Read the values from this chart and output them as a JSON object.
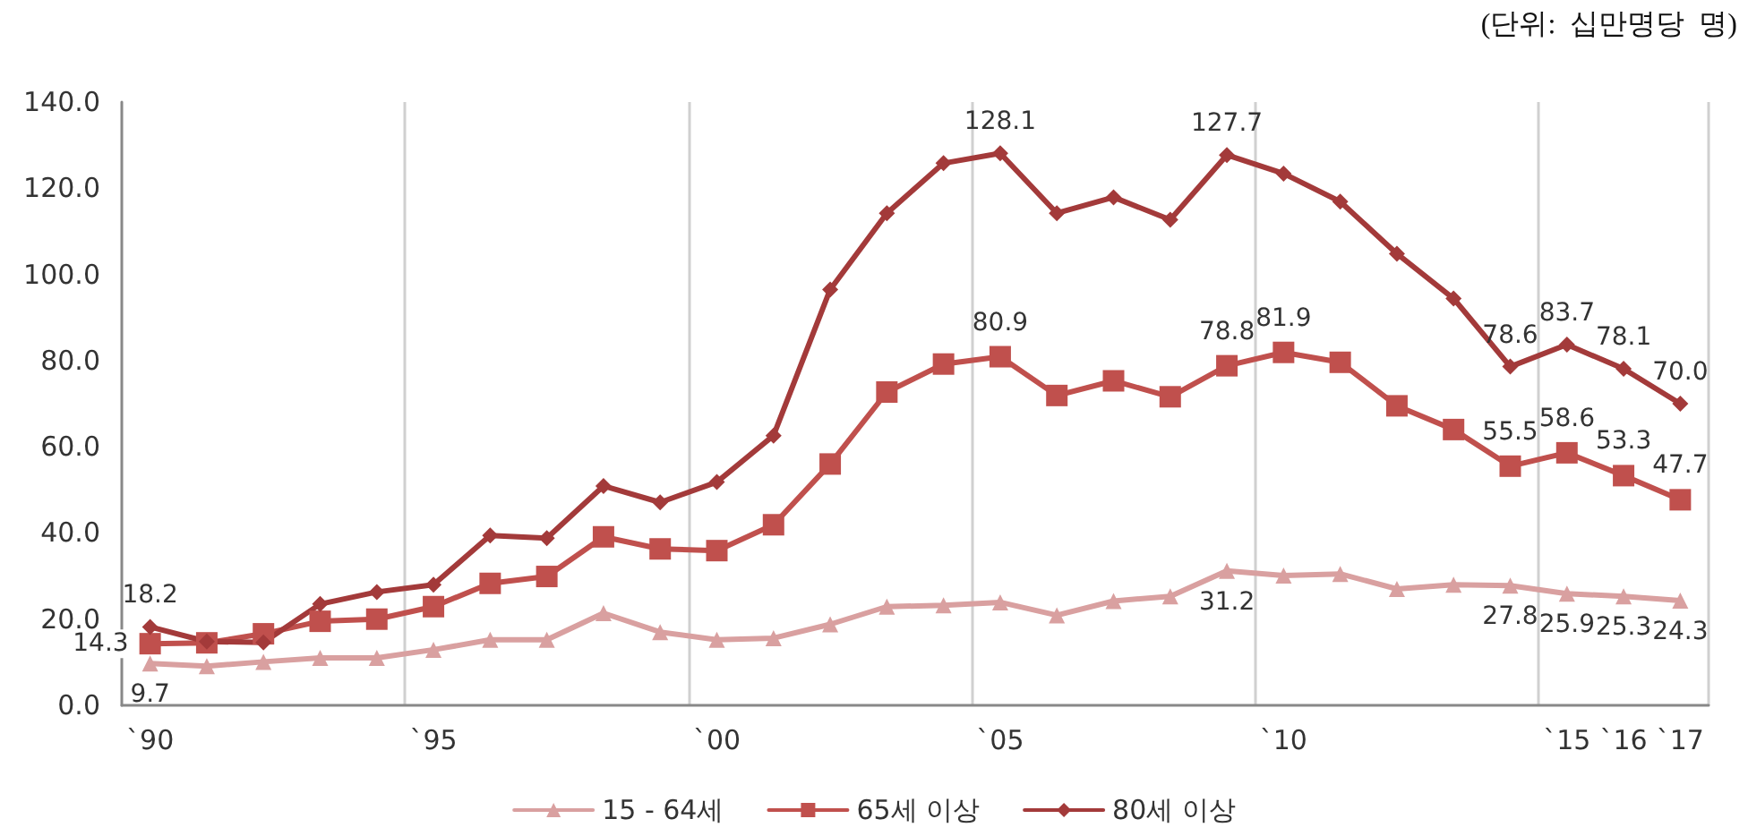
{
  "chart_data": {
    "type": "line",
    "annotations": [
      "(단위:  십만명당  명)"
    ],
    "categories": [
      "`90",
      null,
      null,
      null,
      null,
      "`95",
      null,
      null,
      null,
      null,
      "`00",
      null,
      null,
      null,
      null,
      "`05",
      null,
      null,
      null,
      null,
      "`10",
      null,
      null,
      null,
      null,
      "`15",
      "`16",
      "`17"
    ],
    "ylim": [
      0,
      140
    ],
    "yticks": [
      {
        "value": 0,
        "label": "0.0"
      },
      {
        "value": 20,
        "label": "20.0"
      },
      {
        "value": 40,
        "label": "40.0"
      },
      {
        "value": 60,
        "label": "60.0"
      },
      {
        "value": 80,
        "label": "80.0"
      },
      {
        "value": 100,
        "label": "100.0"
      },
      {
        "value": 120,
        "label": "120.0"
      },
      {
        "value": 140,
        "label": "140.0"
      }
    ],
    "grid": "x",
    "legend": "bottom",
    "line_style": "solid",
    "series": [
      {
        "name": "15 - 64세",
        "color": "#d9a0a0",
        "marker": "triangle",
        "values": [
          9.7,
          9.1,
          10.1,
          11.0,
          11.0,
          12.9,
          15.2,
          15.2,
          21.4,
          17.0,
          15.2,
          15.6,
          18.8,
          22.9,
          23.2,
          23.9,
          20.9,
          24.2,
          25.3,
          31.2,
          30.1,
          30.5,
          27.0,
          28.0,
          27.8,
          25.9,
          25.3,
          24.3
        ],
        "value_labels": [
          "9.7",
          null,
          null,
          null,
          null,
          null,
          null,
          null,
          null,
          null,
          null,
          null,
          null,
          null,
          null,
          null,
          null,
          null,
          null,
          "31.2",
          null,
          null,
          null,
          null,
          "27.8",
          "25.9",
          "25.3",
          "24.3"
        ]
      },
      {
        "name": "65세 이상",
        "color": "#c0504d",
        "marker": "square",
        "values": [
          14.3,
          14.5,
          16.6,
          19.5,
          20.0,
          22.9,
          28.3,
          29.9,
          39.1,
          36.3,
          35.9,
          41.9,
          56.0,
          72.7,
          79.2,
          80.9,
          71.9,
          75.3,
          71.6,
          78.8,
          81.9,
          79.6,
          69.5,
          64.0,
          55.5,
          58.6,
          53.3,
          47.7
        ],
        "value_labels": [
          "14.3",
          null,
          null,
          null,
          null,
          null,
          null,
          null,
          null,
          null,
          null,
          null,
          null,
          null,
          null,
          "80.9",
          null,
          null,
          null,
          "78.8",
          "81.9",
          null,
          null,
          null,
          "55.5",
          "58.6",
          "53.3",
          "47.7"
        ]
      },
      {
        "name": "80세 이상",
        "color": "#a33a3a",
        "marker": "diamond",
        "values": [
          18.2,
          14.8,
          14.6,
          23.5,
          26.3,
          28.0,
          39.4,
          38.8,
          50.9,
          47.1,
          51.8,
          62.6,
          96.5,
          114.2,
          125.8,
          128.1,
          114.2,
          117.9,
          112.7,
          127.7,
          123.4,
          116.9,
          104.8,
          94.4,
          78.6,
          83.7,
          78.1,
          70.0
        ],
        "value_labels": [
          "18.2",
          null,
          null,
          null,
          null,
          null,
          null,
          null,
          null,
          null,
          null,
          null,
          null,
          null,
          null,
          "128.1",
          null,
          null,
          null,
          "127.7",
          null,
          null,
          null,
          null,
          "78.6",
          "83.7",
          "78.1",
          "70.0"
        ]
      }
    ]
  }
}
